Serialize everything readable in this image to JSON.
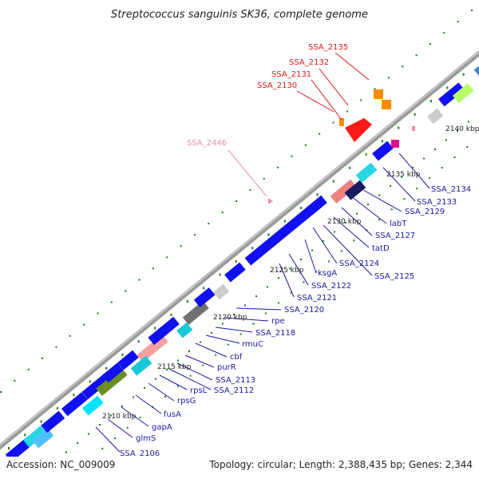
{
  "title": "Streptococcus sanguinis SK36, complete genome",
  "footer": {
    "accession": "Accession: NC_009009",
    "summary": "Topology: circular; Length: 2,388,435 bp; Genes: 2,344"
  },
  "colors": {
    "backbone": "#9a9a9a",
    "gene_default": "#1010f0",
    "label_blue": "#1a1aa6",
    "label_red": "#e01818",
    "label_pink": "#f08cb4",
    "gc_dots": "#1a7a1a"
  },
  "ticks": [
    {
      "label": "2110 kbp"
    },
    {
      "label": "2115 kbp"
    },
    {
      "label": "2120 kbp"
    },
    {
      "label": "2125 kbp"
    },
    {
      "label": "2130 kbp"
    },
    {
      "label": "2135 kbp"
    },
    {
      "label": "2140 kbp"
    }
  ],
  "gene_labels": [
    {
      "name": "SSA_2106",
      "style": "blue"
    },
    {
      "name": "glmS",
      "style": "blue"
    },
    {
      "name": "gapA",
      "style": "blue"
    },
    {
      "name": "fusA",
      "style": "blue"
    },
    {
      "name": "rpsG",
      "style": "blue"
    },
    {
      "name": "rpsL",
      "style": "blue"
    },
    {
      "name": "SSA_2112",
      "style": "blue"
    },
    {
      "name": "SSA_2113",
      "style": "blue"
    },
    {
      "name": "purR",
      "style": "blue"
    },
    {
      "name": "cbf",
      "style": "blue"
    },
    {
      "name": "rmuC",
      "style": "blue"
    },
    {
      "name": "SSA_2118",
      "style": "blue"
    },
    {
      "name": "rpe",
      "style": "blue"
    },
    {
      "name": "SSA_2120",
      "style": "blue"
    },
    {
      "name": "SSA_2121",
      "style": "blue"
    },
    {
      "name": "SSA_2122",
      "style": "blue"
    },
    {
      "name": "ksgA",
      "style": "blue"
    },
    {
      "name": "SSA_2124",
      "style": "blue"
    },
    {
      "name": "SSA_2125",
      "style": "blue"
    },
    {
      "name": "tatD",
      "style": "blue"
    },
    {
      "name": "SSA_2127",
      "style": "blue"
    },
    {
      "name": "labT",
      "style": "blue"
    },
    {
      "name": "SSA_2129",
      "style": "blue"
    },
    {
      "name": "SSA_2133",
      "style": "blue"
    },
    {
      "name": "SSA_2134",
      "style": "blue"
    },
    {
      "name": "SSA_2130",
      "style": "red"
    },
    {
      "name": "SSA_2131",
      "style": "red"
    },
    {
      "name": "SSA_2132",
      "style": "red"
    },
    {
      "name": "SSA_2135",
      "style": "red"
    },
    {
      "name": "SSA_2446",
      "style": "pink"
    }
  ]
}
